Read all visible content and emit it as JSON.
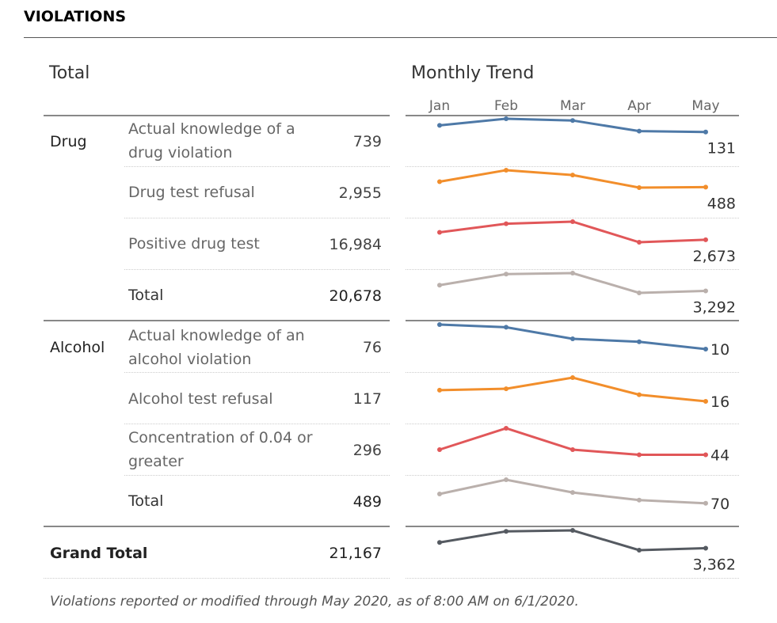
{
  "page_title": "VIOLATIONS",
  "headers": {
    "total": "Total",
    "trend": "Monthly Trend"
  },
  "months": [
    "Jan",
    "Feb",
    "Mar",
    "Apr",
    "May"
  ],
  "colors": {
    "blue": "#4e79a7",
    "orange": "#f28e2b",
    "red": "#e15759",
    "gray": "#bab0ac",
    "dark": "#555a61"
  },
  "footnote": "Violations reported or modified through May 2020, as of 8:00 AM on 6/1/2020.",
  "groups": [
    {
      "name": "Drug",
      "rows": [
        {
          "label": "Actual knowledge of a drug violation",
          "value": "739",
          "last": "131",
          "color": "blue",
          "trend": [
            0.38,
            0.0,
            0.1,
            0.71,
            0.76
          ]
        },
        {
          "label": "Drug test refusal",
          "value": "2,955",
          "last": "488",
          "color": "orange",
          "trend": [
            0.66,
            0.0,
            0.28,
            1.0,
            0.97
          ]
        },
        {
          "label": "Positive drug test",
          "value": "16,984",
          "last": "2,673",
          "color": "red",
          "trend": [
            0.52,
            0.1,
            0.0,
            1.0,
            0.88
          ]
        },
        {
          "label": "Total",
          "value": "20,678",
          "last": "3,292",
          "color": "gray",
          "trend": [
            0.61,
            0.05,
            0.0,
            1.0,
            0.9
          ]
        }
      ]
    },
    {
      "name": "Alcohol",
      "rows": [
        {
          "label": "Actual knowledge of an alcohol violation",
          "value": "76",
          "last": "10",
          "color": "blue",
          "trend": [
            0.0,
            0.11,
            0.58,
            0.7,
            1.0
          ]
        },
        {
          "label": "Alcohol test refusal",
          "value": "117",
          "last": "16",
          "color": "orange",
          "trend": [
            0.53,
            0.47,
            0.0,
            0.72,
            1.0
          ]
        },
        {
          "label": "Concentration of 0.04 or greater",
          "value": "296",
          "last": "44",
          "color": "red",
          "trend": [
            1.0,
            0.0,
            1.0,
            1.24,
            1.24
          ]
        },
        {
          "label": "Total",
          "value": "489",
          "last": "70",
          "color": "gray",
          "trend": [
            0.58,
            0.0,
            0.52,
            0.83,
            0.96
          ]
        }
      ]
    }
  ],
  "grand_total": {
    "label": "Grand Total",
    "value": "21,167",
    "last": "3,362",
    "color": "dark",
    "trend": [
      0.61,
      0.05,
      0.0,
      1.0,
      0.9
    ]
  },
  "chart_data": {
    "type": "line",
    "title": "Monthly Trend",
    "x": [
      "Jan",
      "Feb",
      "Mar",
      "Apr",
      "May"
    ],
    "series_last_values": {
      "Actual knowledge of a drug violation": 131,
      "Drug test refusal": 488,
      "Positive drug test": 2673,
      "Drug Total": 3292,
      "Actual knowledge of an alcohol violation": 10,
      "Alcohol test refusal": 16,
      "Concentration of 0.04 or greater": 44,
      "Alcohol Total": 70,
      "Grand Total": 3362
    }
  }
}
